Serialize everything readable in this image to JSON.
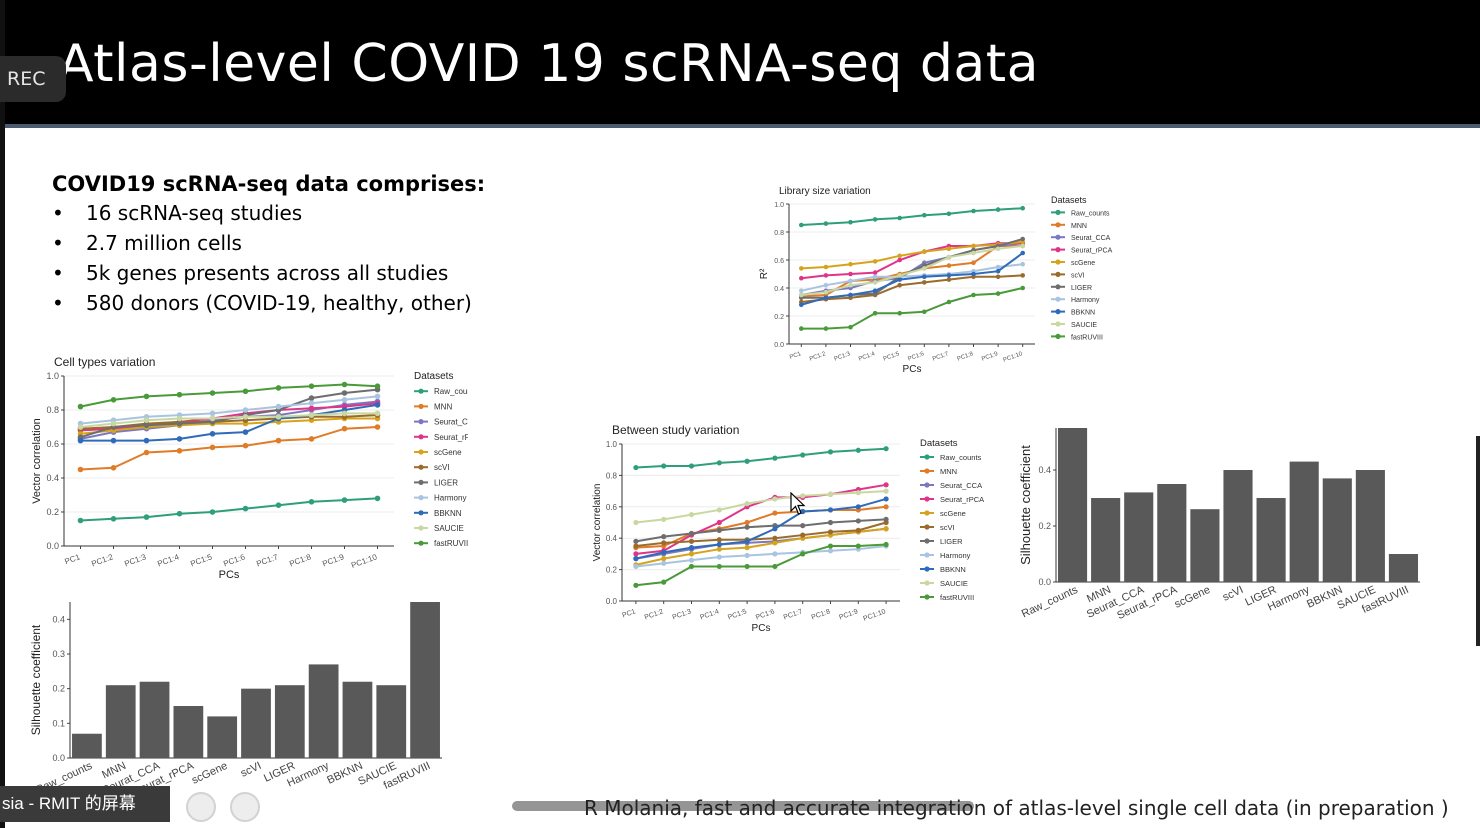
{
  "slide": {
    "title": "Atlas-level COVID 19 scRNA-seq data",
    "rec_label": "REC",
    "intro_heading": "COVID19 scRNA-seq data comprises:",
    "bullets": [
      "16 scRNA-seq studies",
      "2.7 million cells",
      "5k genes presents across all studies",
      "580 donors (COVID-19, healthy, other)"
    ],
    "citation": "R Molania, fast and accurate integration of atlas-level single cell data (in preparation )",
    "taskbar_label": "sia - RMIT 的屏幕",
    "bullet_glyph": "•"
  },
  "colors": {
    "header_bg": "#000000",
    "bar_fill": "#595959"
  },
  "chart_data": [
    {
      "id": "cell_types",
      "type": "line",
      "title": "Cell types variation",
      "xlabel": "PCs",
      "ylabel": "Vector correlation",
      "legend_title": "Datasets",
      "ylim": [
        0,
        1
      ],
      "yticks": [
        "0.0",
        "0.2",
        "0.4",
        "0.6",
        "0.8",
        "1.0"
      ],
      "categories": [
        "PC1",
        "PC1:2",
        "PC1:3",
        "PC1:4",
        "PC1:5",
        "PC1:6",
        "PC1:7",
        "PC1:8",
        "PC1:9",
        "PC1:10"
      ],
      "series": [
        {
          "name": "Raw_counts",
          "color": "#2e9e7c",
          "values": [
            0.15,
            0.16,
            0.17,
            0.19,
            0.2,
            0.22,
            0.24,
            0.26,
            0.27,
            0.28
          ]
        },
        {
          "name": "MNN",
          "color": "#e07b28",
          "values": [
            0.45,
            0.46,
            0.55,
            0.56,
            0.58,
            0.59,
            0.62,
            0.63,
            0.69,
            0.7
          ]
        },
        {
          "name": "Seurat_CCA",
          "color": "#7b78c0",
          "values": [
            0.63,
            0.67,
            0.69,
            0.71,
            0.74,
            0.76,
            0.77,
            0.8,
            0.83,
            0.85
          ]
        },
        {
          "name": "Seurat_rPCA",
          "color": "#e0348a",
          "values": [
            0.68,
            0.69,
            0.71,
            0.73,
            0.75,
            0.78,
            0.8,
            0.81,
            0.82,
            0.84
          ]
        },
        {
          "name": "scGene",
          "color": "#d6a41c",
          "values": [
            0.66,
            0.68,
            0.7,
            0.71,
            0.72,
            0.72,
            0.73,
            0.74,
            0.75,
            0.75
          ]
        },
        {
          "name": "scVI",
          "color": "#9a6b2a",
          "values": [
            0.69,
            0.7,
            0.72,
            0.73,
            0.73,
            0.74,
            0.75,
            0.76,
            0.76,
            0.77
          ]
        },
        {
          "name": "LIGER",
          "color": "#6e6e6e",
          "values": [
            0.64,
            0.7,
            0.71,
            0.72,
            0.73,
            0.77,
            0.8,
            0.87,
            0.9,
            0.92
          ]
        },
        {
          "name": "Harmony",
          "color": "#a8c4e0",
          "values": [
            0.72,
            0.74,
            0.76,
            0.77,
            0.78,
            0.8,
            0.82,
            0.84,
            0.86,
            0.88
          ]
        },
        {
          "name": "BBKNN",
          "color": "#2f6bb8",
          "values": [
            0.62,
            0.62,
            0.62,
            0.63,
            0.66,
            0.67,
            0.75,
            0.77,
            0.8,
            0.83
          ]
        },
        {
          "name": "SAUCIE",
          "color": "#c8d8a0",
          "values": [
            0.7,
            0.72,
            0.74,
            0.75,
            0.75,
            0.76,
            0.76,
            0.77,
            0.78,
            0.78
          ]
        },
        {
          "name": "fastRUVIII",
          "color": "#4a9a3a",
          "values": [
            0.82,
            0.86,
            0.88,
            0.89,
            0.9,
            0.91,
            0.93,
            0.94,
            0.95,
            0.94
          ]
        }
      ]
    },
    {
      "id": "cell_types_silhouette",
      "type": "bar",
      "ylabel": "Silhouette coefficient",
      "ylim": [
        0,
        0.45
      ],
      "yticks": [
        "0.0",
        "0.1",
        "0.2",
        "0.3",
        "0.4"
      ],
      "categories": [
        "Raw_counts",
        "MNN",
        "Seurat_CCA",
        "Seurat_rPCA",
        "scGene",
        "scVI",
        "LIGER",
        "Harmony",
        "BBKNN",
        "SAUCIE",
        "fastRUVIII"
      ],
      "values": [
        0.07,
        0.21,
        0.22,
        0.15,
        0.12,
        0.2,
        0.21,
        0.27,
        0.22,
        0.21,
        0.45
      ]
    },
    {
      "id": "library_size",
      "type": "line",
      "title": "Library size variation",
      "xlabel": "PCs",
      "ylabel": "R²",
      "legend_title": "Datasets",
      "ylim": [
        0,
        1
      ],
      "yticks": [
        "0.0",
        "0.2",
        "0.4",
        "0.6",
        "0.8",
        "1.0"
      ],
      "categories": [
        "PC1",
        "PC1:2",
        "PC1:3",
        "PC1:4",
        "PC1:5",
        "PC1:6",
        "PC1:7",
        "PC1:8",
        "PC1:9",
        "PC1:10"
      ],
      "series": [
        {
          "name": "Raw_counts",
          "color": "#2e9e7c",
          "values": [
            0.85,
            0.86,
            0.87,
            0.89,
            0.9,
            0.92,
            0.93,
            0.95,
            0.96,
            0.97
          ]
        },
        {
          "name": "MNN",
          "color": "#e07b28",
          "values": [
            0.34,
            0.35,
            0.45,
            0.46,
            0.5,
            0.54,
            0.56,
            0.58,
            0.7,
            0.7
          ]
        },
        {
          "name": "Seurat_CCA",
          "color": "#7b78c0",
          "values": [
            0.35,
            0.38,
            0.4,
            0.45,
            0.47,
            0.58,
            0.62,
            0.67,
            0.7,
            0.72
          ]
        },
        {
          "name": "Seurat_rPCA",
          "color": "#e0348a",
          "values": [
            0.47,
            0.49,
            0.5,
            0.51,
            0.6,
            0.66,
            0.7,
            0.7,
            0.72,
            0.72
          ]
        },
        {
          "name": "scGene",
          "color": "#d6a41c",
          "values": [
            0.54,
            0.55,
            0.57,
            0.59,
            0.63,
            0.66,
            0.68,
            0.7,
            0.71,
            0.73
          ]
        },
        {
          "name": "scVI",
          "color": "#9a6b2a",
          "values": [
            0.3,
            0.32,
            0.33,
            0.35,
            0.42,
            0.44,
            0.46,
            0.48,
            0.48,
            0.49
          ]
        },
        {
          "name": "LIGER",
          "color": "#6e6e6e",
          "values": [
            0.33,
            0.33,
            0.35,
            0.36,
            0.48,
            0.56,
            0.62,
            0.67,
            0.7,
            0.75
          ]
        },
        {
          "name": "Harmony",
          "color": "#a8c4e0",
          "values": [
            0.38,
            0.42,
            0.45,
            0.48,
            0.48,
            0.49,
            0.5,
            0.52,
            0.55,
            0.57
          ]
        },
        {
          "name": "BBKNN",
          "color": "#2f6bb8",
          "values": [
            0.28,
            0.33,
            0.35,
            0.38,
            0.46,
            0.48,
            0.49,
            0.5,
            0.52,
            0.65
          ]
        },
        {
          "name": "SAUCIE",
          "color": "#c8d8a0",
          "values": [
            0.35,
            0.37,
            0.42,
            0.44,
            0.49,
            0.54,
            0.62,
            0.65,
            0.68,
            0.7
          ]
        },
        {
          "name": "fastRUVIII",
          "color": "#4a9a3a",
          "values": [
            0.11,
            0.11,
            0.12,
            0.22,
            0.22,
            0.23,
            0.3,
            0.35,
            0.36,
            0.4
          ]
        }
      ]
    },
    {
      "id": "between_study",
      "type": "line",
      "title": "Between study variation",
      "xlabel": "PCs",
      "ylabel": "Vector correlation",
      "legend_title": "Datasets",
      "ylim": [
        0,
        1
      ],
      "yticks": [
        "0.0",
        "0.2",
        "0.4",
        "0.6",
        "0.8",
        "1.0"
      ],
      "categories": [
        "PC1",
        "PC1:2",
        "PC1:3",
        "PC1:4",
        "PC1:5",
        "PC1:6",
        "PC1:7",
        "PC1:8",
        "PC1:9",
        "PC1:10"
      ],
      "series": [
        {
          "name": "Raw_counts",
          "color": "#2e9e7c",
          "values": [
            0.85,
            0.86,
            0.86,
            0.88,
            0.89,
            0.91,
            0.93,
            0.95,
            0.96,
            0.97
          ]
        },
        {
          "name": "MNN",
          "color": "#e07b28",
          "values": [
            0.34,
            0.35,
            0.43,
            0.46,
            0.5,
            0.56,
            0.57,
            0.58,
            0.58,
            0.6
          ]
        },
        {
          "name": "Seurat_CCA",
          "color": "#7b78c0",
          "values": [
            0.27,
            0.3,
            0.33,
            0.36,
            0.37,
            0.38,
            0.4,
            0.42,
            0.44,
            0.46
          ]
        },
        {
          "name": "Seurat_rPCA",
          "color": "#e0348a",
          "values": [
            0.3,
            0.32,
            0.42,
            0.5,
            0.6,
            0.66,
            0.66,
            0.68,
            0.71,
            0.74
          ]
        },
        {
          "name": "scGene",
          "color": "#d6a41c",
          "values": [
            0.23,
            0.27,
            0.3,
            0.33,
            0.34,
            0.37,
            0.4,
            0.42,
            0.44,
            0.46
          ]
        },
        {
          "name": "scVI",
          "color": "#9a6b2a",
          "values": [
            0.35,
            0.37,
            0.38,
            0.39,
            0.39,
            0.4,
            0.42,
            0.44,
            0.45,
            0.5
          ]
        },
        {
          "name": "LIGER",
          "color": "#6e6e6e",
          "values": [
            0.38,
            0.41,
            0.43,
            0.45,
            0.47,
            0.48,
            0.48,
            0.5,
            0.51,
            0.52
          ]
        },
        {
          "name": "Harmony",
          "color": "#a8c4e0",
          "values": [
            0.22,
            0.24,
            0.26,
            0.28,
            0.29,
            0.3,
            0.31,
            0.32,
            0.33,
            0.35
          ]
        },
        {
          "name": "BBKNN",
          "color": "#2f6bb8",
          "values": [
            0.27,
            0.31,
            0.34,
            0.36,
            0.38,
            0.46,
            0.57,
            0.58,
            0.6,
            0.65
          ]
        },
        {
          "name": "SAUCIE",
          "color": "#c8d8a0",
          "values": [
            0.5,
            0.52,
            0.55,
            0.58,
            0.62,
            0.65,
            0.67,
            0.68,
            0.69,
            0.7
          ]
        },
        {
          "name": "fastRUVIII",
          "color": "#4a9a3a",
          "values": [
            0.1,
            0.12,
            0.22,
            0.22,
            0.22,
            0.22,
            0.3,
            0.35,
            0.35,
            0.36
          ]
        }
      ]
    },
    {
      "id": "between_study_silhouette",
      "type": "bar",
      "ylabel": "Silhouette coefficient",
      "ylim": [
        0,
        0.55
      ],
      "yticks": [
        "0.0",
        "0.2",
        "0.4"
      ],
      "categories": [
        "Raw_counts",
        "MNN",
        "Seurat_CCA",
        "Seurat_rPCA",
        "scGene",
        "scVI",
        "LIGER",
        "Harmony",
        "BBKNN",
        "SAUCIE",
        "fastRUVIII"
      ],
      "values": [
        0.55,
        0.3,
        0.32,
        0.35,
        0.26,
        0.4,
        0.3,
        0.43,
        0.37,
        0.4,
        0.1
      ]
    }
  ]
}
